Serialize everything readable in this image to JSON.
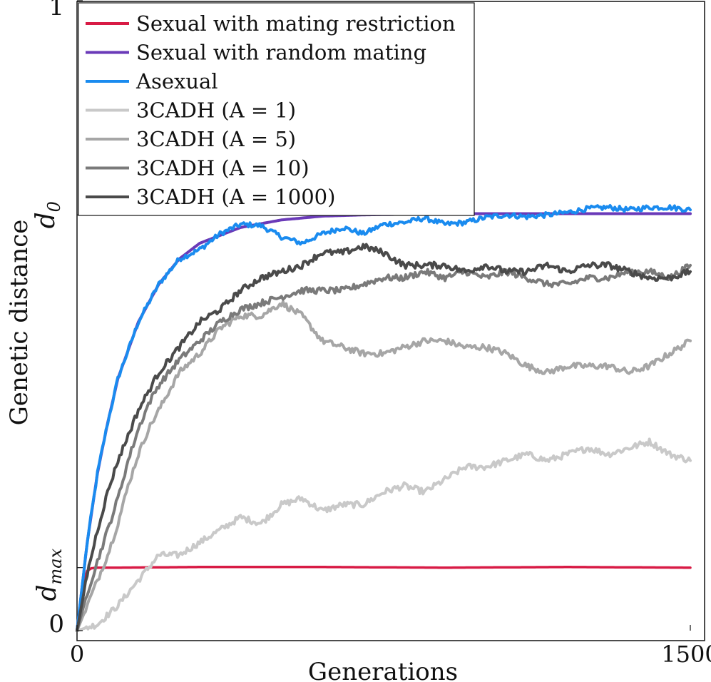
{
  "chart_data": {
    "type": "line",
    "xlabel": "Generations",
    "ylabel": "Genetic distance",
    "xlim": [
      0,
      1500
    ],
    "ylim": [
      0,
      1
    ],
    "x_ticks": [
      {
        "value": 0,
        "label": "0"
      },
      {
        "value": 1500,
        "label": "1500"
      }
    ],
    "y_ticks": [
      {
        "value": 0,
        "label": "0"
      },
      {
        "value": 0.1,
        "label": "d",
        "sub": "max"
      },
      {
        "value": 0.66,
        "label": "d",
        "sub": "0"
      },
      {
        "value": 1,
        "label": "1"
      }
    ],
    "grid": false,
    "legend_position": "top-left",
    "series": [
      {
        "name": "Sexual with mating restriction",
        "color": "#d81b45",
        "width": 3.5,
        "noise": 0.0,
        "x": [
          0,
          15,
          25,
          35,
          50,
          100,
          300,
          600,
          900,
          1200,
          1500
        ],
        "y": [
          0,
          0.075,
          0.095,
          0.099,
          0.1,
          0.1,
          0.101,
          0.101,
          0.1,
          0.101,
          0.1
        ]
      },
      {
        "name": "Sexual with random mating",
        "color": "#6a3ab8",
        "width": 4,
        "noise": 0.0,
        "x": [
          0,
          25,
          50,
          75,
          100,
          150,
          200,
          250,
          300,
          400,
          500,
          600,
          700,
          800,
          900,
          1000,
          1200,
          1500
        ],
        "y": [
          0,
          0.14,
          0.25,
          0.33,
          0.4,
          0.49,
          0.55,
          0.59,
          0.615,
          0.64,
          0.652,
          0.658,
          0.66,
          0.661,
          0.662,
          0.662,
          0.662,
          0.662
        ]
      },
      {
        "name": "Asexual",
        "color": "#1a8bef",
        "width": 4,
        "noise": 0.004,
        "x": [
          0,
          25,
          50,
          75,
          100,
          150,
          200,
          250,
          300,
          350,
          400,
          450,
          500,
          550,
          600,
          650,
          700,
          750,
          800,
          850,
          900,
          950,
          1000,
          1050,
          1100,
          1150,
          1200,
          1250,
          1300,
          1350,
          1400,
          1450,
          1500
        ],
        "y": [
          0,
          0.14,
          0.25,
          0.33,
          0.4,
          0.49,
          0.55,
          0.59,
          0.605,
          0.63,
          0.645,
          0.643,
          0.625,
          0.615,
          0.63,
          0.64,
          0.63,
          0.645,
          0.648,
          0.655,
          0.645,
          0.648,
          0.656,
          0.66,
          0.657,
          0.66,
          0.664,
          0.67,
          0.672,
          0.668,
          0.672,
          0.672,
          0.668
        ]
      },
      {
        "name": "3CADH (A = 1)",
        "color": "#c9c9c9",
        "width": 4,
        "noise": 0.005,
        "x": [
          0,
          50,
          100,
          150,
          200,
          250,
          300,
          350,
          400,
          450,
          500,
          550,
          600,
          650,
          700,
          750,
          800,
          850,
          900,
          950,
          1000,
          1050,
          1100,
          1150,
          1200,
          1250,
          1300,
          1350,
          1400,
          1450,
          1500
        ],
        "y": [
          0,
          0.01,
          0.04,
          0.08,
          0.12,
          0.12,
          0.14,
          0.16,
          0.18,
          0.17,
          0.2,
          0.21,
          0.19,
          0.2,
          0.2,
          0.22,
          0.23,
          0.22,
          0.24,
          0.26,
          0.26,
          0.27,
          0.28,
          0.27,
          0.28,
          0.29,
          0.28,
          0.29,
          0.3,
          0.28,
          0.27
        ]
      },
      {
        "name": "3CADH (A = 5)",
        "color": "#a6a6a6",
        "width": 4,
        "noise": 0.005,
        "x": [
          0,
          25,
          50,
          75,
          100,
          125,
          150,
          175,
          200,
          250,
          300,
          350,
          400,
          450,
          500,
          550,
          600,
          650,
          700,
          750,
          800,
          850,
          900,
          950,
          1000,
          1050,
          1100,
          1150,
          1200,
          1250,
          1300,
          1350,
          1400,
          1450,
          1500
        ],
        "y": [
          0,
          0.04,
          0.08,
          0.12,
          0.17,
          0.23,
          0.28,
          0.32,
          0.35,
          0.41,
          0.44,
          0.48,
          0.5,
          0.5,
          0.52,
          0.5,
          0.46,
          0.45,
          0.44,
          0.44,
          0.45,
          0.46,
          0.46,
          0.45,
          0.45,
          0.44,
          0.42,
          0.41,
          0.42,
          0.42,
          0.42,
          0.41,
          0.42,
          0.44,
          0.46
        ]
      },
      {
        "name": "3CADH (A = 10)",
        "color": "#7a7a7a",
        "width": 4,
        "noise": 0.005,
        "x": [
          0,
          25,
          50,
          75,
          100,
          125,
          150,
          175,
          200,
          250,
          300,
          350,
          400,
          450,
          500,
          550,
          600,
          650,
          700,
          750,
          800,
          850,
          900,
          950,
          1000,
          1050,
          1100,
          1150,
          1200,
          1250,
          1300,
          1350,
          1400,
          1450,
          1500
        ],
        "y": [
          0,
          0.06,
          0.11,
          0.16,
          0.21,
          0.27,
          0.32,
          0.36,
          0.39,
          0.43,
          0.46,
          0.49,
          0.51,
          0.52,
          0.53,
          0.54,
          0.54,
          0.54,
          0.55,
          0.56,
          0.56,
          0.57,
          0.56,
          0.57,
          0.56,
          0.57,
          0.56,
          0.55,
          0.55,
          0.56,
          0.56,
          0.57,
          0.57,
          0.56,
          0.58
        ]
      },
      {
        "name": "3CADH (A = 1000)",
        "color": "#4a4a4a",
        "width": 4,
        "noise": 0.005,
        "x": [
          0,
          25,
          50,
          75,
          100,
          125,
          150,
          175,
          200,
          250,
          300,
          350,
          400,
          450,
          500,
          550,
          600,
          650,
          700,
          750,
          800,
          850,
          900,
          950,
          1000,
          1050,
          1100,
          1150,
          1200,
          1250,
          1300,
          1350,
          1400,
          1450,
          1500
        ],
        "y": [
          0,
          0.09,
          0.16,
          0.22,
          0.27,
          0.31,
          0.35,
          0.38,
          0.41,
          0.45,
          0.49,
          0.51,
          0.54,
          0.56,
          0.57,
          0.58,
          0.6,
          0.6,
          0.61,
          0.6,
          0.58,
          0.58,
          0.58,
          0.57,
          0.58,
          0.57,
          0.57,
          0.58,
          0.57,
          0.58,
          0.58,
          0.57,
          0.56,
          0.56,
          0.57
        ]
      }
    ]
  }
}
